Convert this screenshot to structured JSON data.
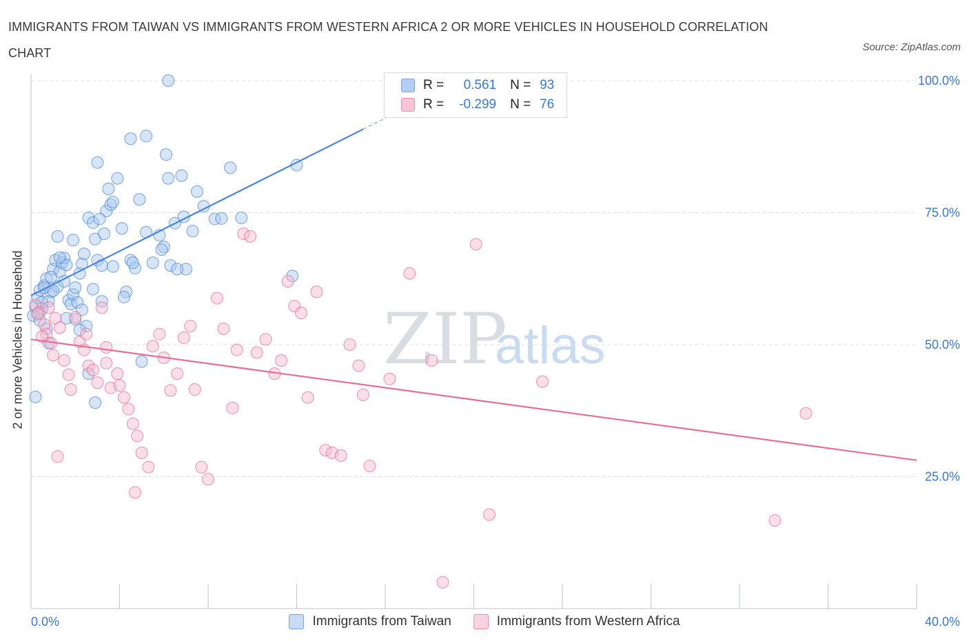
{
  "title": "IMMIGRANTS FROM TAIWAN VS IMMIGRANTS FROM WESTERN AFRICA 2 OR MORE VEHICLES IN HOUSEHOLD CORRELATION CHART",
  "source": "Source: ZipAtlas.com",
  "watermark": {
    "zip": "ZIP",
    "atlas": "atlas"
  },
  "legend": {
    "r_label": "R =",
    "n_label": "N =",
    "rows": [
      {
        "r": "0.561",
        "n": "93",
        "color": "#4a86d8"
      },
      {
        "r": "-0.299",
        "n": "76",
        "color": "#e66d98"
      }
    ]
  },
  "bottom_legend": [
    "Immigrants from Taiwan",
    "Immigrants from Western Africa"
  ],
  "chart_data": {
    "type": "scatter",
    "title": "IMMIGRANTS FROM TAIWAN VS IMMIGRANTS FROM WESTERN AFRICA 2 OR MORE VEHICLES IN HOUSEHOLD CORRELATION CHART",
    "xlabel": "",
    "ylabel": "2 or more Vehicles in Household",
    "xlim": [
      0,
      40
    ],
    "ylim": [
      0,
      100
    ],
    "x_ticks": [
      "0.0%",
      "40.0%"
    ],
    "y_ticks": [
      "100.0%",
      "75.0%",
      "50.0%",
      "25.0%"
    ],
    "y_tick_values": [
      100,
      75,
      50,
      25
    ],
    "grid": true,
    "legend_position": "top-center",
    "series": [
      {
        "name": "Immigrants from Taiwan",
        "color": "#4a86d8",
        "fill": "#a9c6ee",
        "trend": {
          "x1": 0.0,
          "y1": 59.3,
          "x2": 15.0,
          "y2": 90.8,
          "dash_to_x": 17.0
        },
        "points": [
          [
            0.1,
            55.5
          ],
          [
            0.2,
            57.2
          ],
          [
            0.3,
            58.9
          ],
          [
            0.4,
            60.3
          ],
          [
            0.3,
            55.9
          ],
          [
            0.6,
            61.2
          ],
          [
            0.7,
            62.5
          ],
          [
            0.5,
            56.8
          ],
          [
            0.8,
            58.2
          ],
          [
            0.9,
            60.0
          ],
          [
            1.0,
            64.3
          ],
          [
            1.1,
            66.0
          ],
          [
            1.2,
            61.0
          ],
          [
            1.3,
            63.8
          ],
          [
            1.4,
            65.5
          ],
          [
            1.5,
            66.4
          ],
          [
            1.6,
            65.1
          ],
          [
            1.7,
            58.4
          ],
          [
            1.8,
            57.7
          ],
          [
            1.9,
            59.5
          ],
          [
            2.0,
            60.8
          ],
          [
            2.1,
            58.0
          ],
          [
            2.2,
            63.5
          ],
          [
            2.3,
            65.3
          ],
          [
            2.4,
            67.2
          ],
          [
            2.0,
            54.8
          ],
          [
            2.5,
            53.5
          ],
          [
            1.2,
            70.5
          ],
          [
            1.9,
            69.8
          ],
          [
            2.6,
            74.0
          ],
          [
            2.8,
            73.1
          ],
          [
            2.9,
            70.0
          ],
          [
            3.0,
            66.0
          ],
          [
            3.2,
            65.0
          ],
          [
            3.4,
            75.3
          ],
          [
            3.6,
            76.5
          ],
          [
            3.3,
            71.0
          ],
          [
            3.1,
            73.8
          ],
          [
            3.5,
            79.5
          ],
          [
            3.7,
            77.0
          ],
          [
            3.9,
            81.5
          ],
          [
            4.1,
            72.0
          ],
          [
            4.3,
            60.0
          ],
          [
            4.5,
            66.0
          ],
          [
            4.7,
            64.5
          ],
          [
            4.9,
            77.5
          ],
          [
            5.2,
            71.3
          ],
          [
            5.5,
            65.5
          ],
          [
            5.8,
            70.7
          ],
          [
            6.0,
            68.5
          ],
          [
            6.2,
            81.5
          ],
          [
            6.5,
            73.0
          ],
          [
            6.8,
            82.0
          ],
          [
            7.0,
            64.3
          ],
          [
            7.5,
            79.0
          ],
          [
            7.8,
            76.2
          ],
          [
            8.3,
            73.8
          ],
          [
            8.6,
            73.9
          ],
          [
            9.0,
            83.5
          ],
          [
            9.5,
            74.0
          ],
          [
            4.5,
            89.0
          ],
          [
            5.2,
            89.5
          ],
          [
            6.2,
            100.0
          ],
          [
            6.1,
            86.0
          ],
          [
            3.0,
            84.5
          ],
          [
            12.0,
            84.0
          ],
          [
            11.8,
            63.0
          ],
          [
            0.2,
            40.1
          ],
          [
            2.6,
            44.5
          ],
          [
            2.9,
            39.0
          ],
          [
            5.0,
            46.8
          ],
          [
            0.8,
            50.3
          ],
          [
            0.5,
            58.0
          ],
          [
            1.0,
            60.2
          ],
          [
            2.2,
            52.8
          ],
          [
            0.7,
            53.0
          ],
          [
            1.5,
            62.0
          ],
          [
            2.8,
            60.5
          ],
          [
            4.2,
            59.0
          ],
          [
            4.6,
            65.5
          ],
          [
            6.3,
            65.0
          ],
          [
            6.6,
            64.3
          ],
          [
            6.9,
            74.2
          ],
          [
            7.3,
            71.5
          ],
          [
            3.7,
            64.8
          ],
          [
            3.2,
            58.2
          ],
          [
            1.3,
            66.5
          ],
          [
            2.3,
            56.6
          ],
          [
            0.9,
            62.8
          ],
          [
            1.6,
            55.0
          ],
          [
            0.4,
            54.6
          ],
          [
            0.6,
            60.8
          ],
          [
            5.9,
            68.0
          ]
        ]
      },
      {
        "name": "Immigrants from Western Africa",
        "color": "#e66d98",
        "fill": "#f4b8cb",
        "trend": {
          "x1": 0.0,
          "y1": 51.0,
          "x2": 40.0,
          "y2": 28.1
        },
        "points": [
          [
            0.2,
            57.5
          ],
          [
            0.4,
            56.2
          ],
          [
            0.6,
            53.8
          ],
          [
            0.7,
            52.0
          ],
          [
            0.9,
            50.3
          ],
          [
            1.0,
            48.0
          ],
          [
            1.1,
            55.0
          ],
          [
            1.3,
            53.2
          ],
          [
            1.5,
            47.0
          ],
          [
            1.7,
            44.3
          ],
          [
            1.8,
            41.5
          ],
          [
            2.0,
            55.2
          ],
          [
            2.2,
            50.5
          ],
          [
            2.4,
            49.0
          ],
          [
            2.6,
            46.0
          ],
          [
            2.8,
            45.2
          ],
          [
            3.0,
            42.8
          ],
          [
            3.2,
            57.0
          ],
          [
            3.4,
            49.5
          ],
          [
            3.6,
            41.8
          ],
          [
            3.9,
            44.5
          ],
          [
            4.0,
            42.3
          ],
          [
            4.2,
            40.0
          ],
          [
            4.4,
            37.8
          ],
          [
            4.6,
            35.0
          ],
          [
            4.8,
            32.7
          ],
          [
            5.0,
            29.5
          ],
          [
            5.3,
            26.8
          ],
          [
            5.5,
            49.7
          ],
          [
            5.8,
            52.0
          ],
          [
            6.0,
            47.5
          ],
          [
            6.3,
            41.3
          ],
          [
            6.6,
            44.5
          ],
          [
            6.9,
            51.3
          ],
          [
            7.2,
            53.5
          ],
          [
            7.4,
            41.5
          ],
          [
            7.7,
            26.8
          ],
          [
            8.0,
            24.5
          ],
          [
            8.4,
            58.8
          ],
          [
            8.7,
            53.0
          ],
          [
            9.1,
            38.0
          ],
          [
            9.3,
            49.0
          ],
          [
            9.6,
            71.0
          ],
          [
            9.9,
            70.5
          ],
          [
            10.2,
            48.5
          ],
          [
            10.6,
            51.0
          ],
          [
            11.0,
            44.5
          ],
          [
            11.3,
            47.0
          ],
          [
            11.6,
            62.0
          ],
          [
            11.9,
            57.3
          ],
          [
            12.2,
            56.0
          ],
          [
            12.5,
            40.0
          ],
          [
            12.9,
            60.0
          ],
          [
            13.3,
            30.0
          ],
          [
            13.6,
            29.5
          ],
          [
            14.0,
            29.0
          ],
          [
            14.4,
            50.0
          ],
          [
            14.8,
            46.0
          ],
          [
            15.0,
            40.5
          ],
          [
            15.3,
            27.0
          ],
          [
            16.2,
            43.5
          ],
          [
            17.1,
            63.5
          ],
          [
            18.1,
            47.0
          ],
          [
            18.6,
            5.0
          ],
          [
            20.1,
            69.0
          ],
          [
            20.7,
            17.8
          ],
          [
            23.1,
            43.0
          ],
          [
            35.0,
            37.0
          ],
          [
            33.6,
            16.7
          ],
          [
            0.3,
            55.8
          ],
          [
            1.2,
            28.8
          ],
          [
            4.7,
            22.0
          ],
          [
            2.5,
            52.0
          ],
          [
            0.8,
            57.0
          ],
          [
            0.5,
            51.5
          ],
          [
            3.4,
            46.5
          ]
        ]
      }
    ]
  }
}
